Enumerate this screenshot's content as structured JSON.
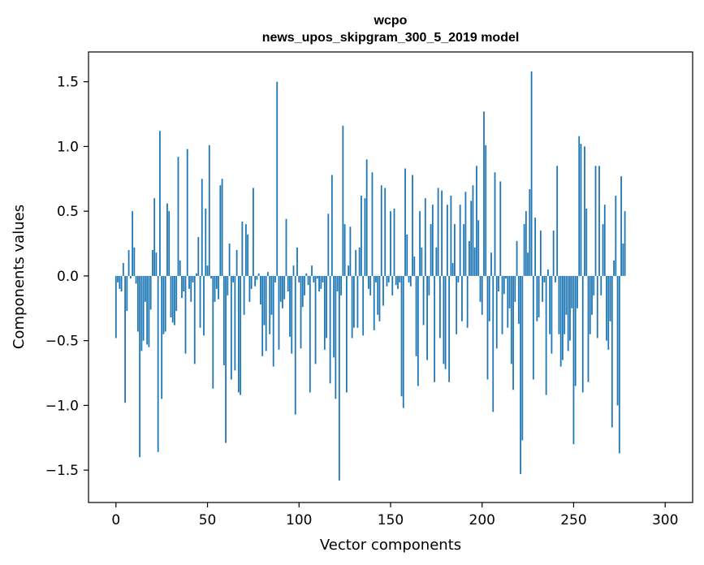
{
  "chart_data": {
    "type": "bar",
    "title_line1": "wcpo",
    "title_line2": "news_upos_skipgram_300_5_2019 model",
    "xlabel": "Vector components",
    "ylabel": "Components values",
    "xlim": [
      -15,
      315
    ],
    "ylim": [
      -1.75,
      1.73
    ],
    "xticks": [
      0,
      50,
      100,
      150,
      200,
      250,
      300
    ],
    "yticks": [
      -1.5,
      -1.0,
      -0.5,
      0.0,
      0.5,
      1.0,
      1.5
    ],
    "xtick_labels": [
      "0",
      "50",
      "100",
      "150",
      "200",
      "250",
      "300"
    ],
    "ytick_labels": [
      "−1.5",
      "−1.0",
      "−0.5",
      "0.0",
      "0.5",
      "1.0",
      "1.5"
    ],
    "grid": false,
    "bar_color": "#1f77b4",
    "values": [
      -0.48,
      -0.05,
      -0.1,
      -0.12,
      0.1,
      -0.98,
      -0.27,
      0.2,
      -0.02,
      0.5,
      0.22,
      -0.06,
      -0.43,
      -1.4,
      -0.58,
      -0.5,
      -0.2,
      -0.53,
      -0.55,
      -0.26,
      0.2,
      0.6,
      0.18,
      -1.36,
      1.12,
      -0.95,
      -0.45,
      -0.43,
      0.56,
      0.5,
      -0.32,
      -0.36,
      -0.38,
      -0.27,
      0.92,
      0.12,
      -0.17,
      -0.12,
      -0.6,
      0.98,
      -0.1,
      -0.2,
      -0.05,
      -0.68,
      0.02,
      0.3,
      -0.4,
      0.75,
      -0.46,
      0.52,
      0.08,
      1.01,
      -0.02,
      -0.87,
      -0.2,
      -0.1,
      -0.18,
      0.7,
      0.75,
      -0.69,
      -1.29,
      -0.15,
      0.25,
      -0.8,
      -0.05,
      -0.73,
      0.2,
      -0.9,
      -0.92,
      0.42,
      -0.3,
      0.4,
      0.32,
      -0.2,
      -0.1,
      0.68,
      -0.08,
      -0.03,
      0.02,
      -0.22,
      -0.62,
      -0.38,
      -0.58,
      0.03,
      -0.45,
      -0.3,
      -0.7,
      -0.05,
      1.5,
      -0.57,
      -0.2,
      -0.25,
      -0.18,
      0.44,
      -0.12,
      -0.47,
      -0.6,
      0.08,
      -1.07,
      0.22,
      -0.05,
      -0.56,
      -0.24,
      -0.15,
      0.02,
      -0.07,
      -0.9,
      0.08,
      -0.05,
      -0.68,
      -0.02,
      -0.12,
      -0.1,
      -0.05,
      -0.57,
      -0.48,
      0.48,
      -0.83,
      0.78,
      -0.63,
      -0.95,
      -0.12,
      -1.58,
      -0.15,
      1.16,
      0.4,
      -0.9,
      0.08,
      0.38,
      -0.48,
      -0.4,
      0.2,
      -0.4,
      0.22,
      0.62,
      -0.46,
      0.6,
      0.9,
      -0.1,
      -0.15,
      0.8,
      -0.42,
      -0.05,
      -0.3,
      -0.35,
      0.7,
      -0.23,
      0.68,
      -0.08,
      -0.05,
      0.5,
      -0.15,
      0.52,
      -0.07,
      -0.1,
      -0.05,
      -0.93,
      -1.02,
      0.83,
      0.32,
      -0.05,
      -0.08,
      0.78,
      0.15,
      -0.62,
      -0.85,
      0.5,
      0.22,
      -0.38,
      0.6,
      -0.65,
      -0.15,
      0.4,
      0.55,
      -0.82,
      0.22,
      0.68,
      -0.48,
      0.66,
      -0.68,
      -0.72,
      0.55,
      -0.82,
      0.62,
      0.1,
      0.4,
      -0.45,
      -0.05,
      0.55,
      -0.35,
      0.4,
      0.65,
      -0.4,
      0.27,
      0.58,
      0.7,
      0.22,
      0.85,
      0.43,
      -0.2,
      -0.3,
      1.27,
      1.01,
      -0.8,
      -0.35,
      0.18,
      -1.05,
      0.8,
      -0.56,
      -0.12,
      0.73,
      -0.45,
      -0.14,
      -0.02,
      -0.4,
      -0.25,
      -0.68,
      -0.88,
      -0.2,
      0.27,
      -0.37,
      -1.53,
      -1.27,
      0.4,
      0.5,
      0.18,
      0.67,
      1.58,
      -0.8,
      0.45,
      -0.35,
      -0.32,
      0.35,
      -0.2,
      -0.05,
      -0.92,
      0.05,
      -0.45,
      -0.6,
      0.35,
      -0.05,
      0.85,
      -0.45,
      -0.7,
      -0.65,
      -0.45,
      -0.3,
      -0.58,
      -0.5,
      -0.25,
      -1.3,
      -0.85,
      -0.25,
      1.08,
      1.02,
      -0.9,
      1.0,
      0.52,
      -0.82,
      -0.45,
      -0.3,
      -0.15,
      0.85,
      -0.48,
      0.85,
      -0.15,
      0.4,
      0.55,
      -0.5,
      -0.57,
      -0.35,
      -1.17,
      0.12,
      0.62,
      -1.0,
      -1.37,
      0.77,
      0.25,
      0.5
    ]
  }
}
